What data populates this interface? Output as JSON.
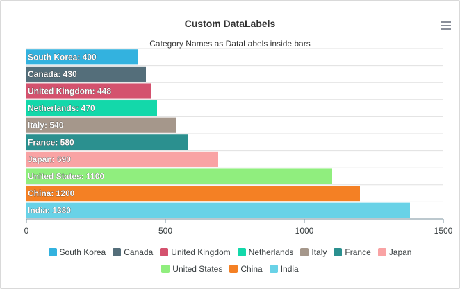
{
  "header": {
    "title": "Custom DataLabels",
    "subtitle": "Category Names as DataLabels inside bars",
    "menu_icon": "hamburger-menu-icon"
  },
  "chart_data": {
    "type": "bar",
    "orientation": "horizontal",
    "title": "Custom DataLabels",
    "subtitle": "Category Names as DataLabels inside bars",
    "categories": [
      "South Korea",
      "Canada",
      "United Kingdom",
      "Netherlands",
      "Italy",
      "France",
      "Japan",
      "United States",
      "China",
      "India"
    ],
    "values": [
      400,
      430,
      448,
      470,
      540,
      580,
      690,
      1100,
      1200,
      1380
    ],
    "colors": [
      "#33b2df",
      "#546e7a",
      "#d4526e",
      "#13d8aa",
      "#a5978b",
      "#2b908f",
      "#f9a3a4",
      "#90ee7e",
      "#f48024",
      "#69d2e7"
    ],
    "data_labels": [
      "South Korea: 400",
      "Canada: 430",
      "United Kingdom: 448",
      "Netherlands: 470",
      "Italy: 540",
      "France: 580",
      "Japan: 690",
      "United States: 1100",
      "China: 1200",
      "India: 1380"
    ],
    "xlim": [
      0,
      1500
    ],
    "x_ticks": [
      0,
      500,
      1000,
      1500
    ],
    "x_tick_labels": [
      "0",
      "500",
      "1000",
      "1500"
    ],
    "xlabel": "",
    "ylabel": "",
    "y_tick_labels_visible": false,
    "grid": "horizontal",
    "legend_position": "bottom"
  }
}
